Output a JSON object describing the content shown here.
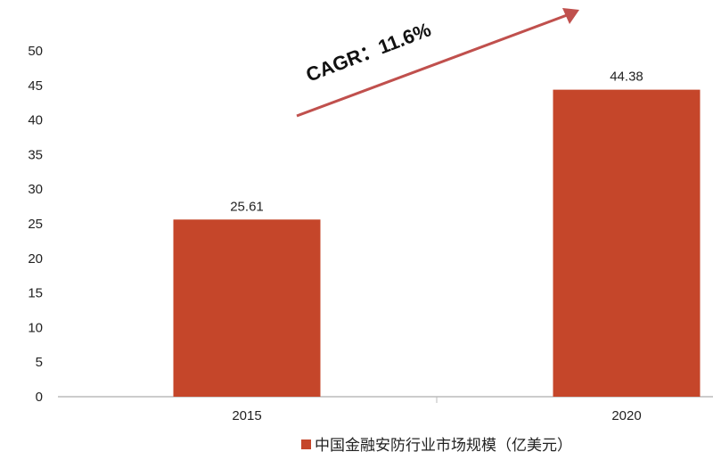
{
  "chart_data": {
    "type": "bar",
    "categories": [
      "2015",
      "2020"
    ],
    "series": [
      {
        "name": "中国金融安防行业市场规模（亿美元）",
        "values": [
          25.61,
          44.38
        ],
        "color": "#c5462a"
      }
    ],
    "data_labels": [
      "25.61",
      "44.38"
    ],
    "ylim": [
      0,
      50
    ],
    "yticks": [
      0,
      5,
      10,
      15,
      20,
      25,
      30,
      35,
      40,
      45,
      50
    ],
    "grid": false,
    "legend": "bottom",
    "annotation": {
      "text": "CAGR：11.6%",
      "arrow_color": "#c0504d"
    },
    "title": "",
    "xlabel": "",
    "ylabel": ""
  }
}
